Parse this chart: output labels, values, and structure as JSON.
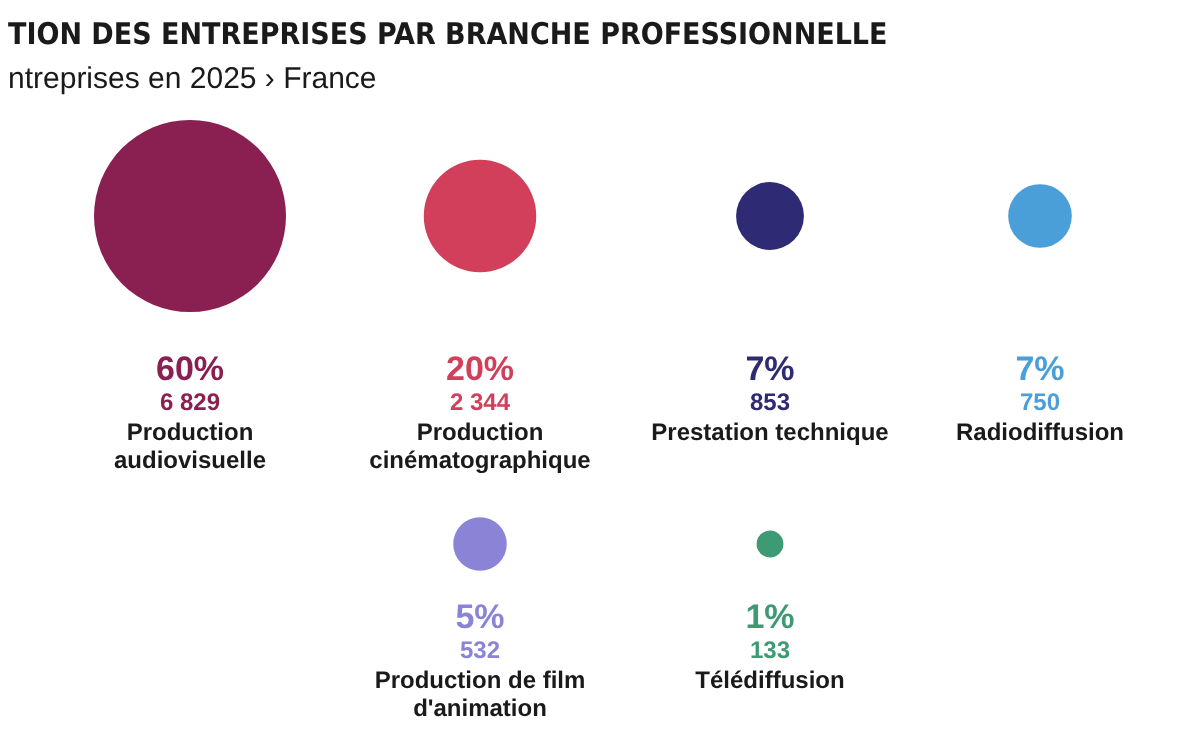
{
  "chart_data": {
    "type": "other",
    "title": "TION DES ENTREPRISES PAR BRANCHE PROFESSIONNELLE",
    "subtitle": "ntreprises en 2025 › France",
    "categories": [
      "Production audiovisuelle",
      "Production cinématographique",
      "Prestation technique",
      "Radiodiffusion",
      "Production de film d'animation",
      "Télédiffusion"
    ],
    "values": [
      6829,
      2344,
      853,
      750,
      532,
      133
    ],
    "value_labels": [
      "6 829",
      "2 344",
      "853",
      "750",
      "532",
      "133"
    ],
    "annotations": [
      {
        "text": "60%",
        "x": "Production audiovisuelle"
      },
      {
        "text": "20%",
        "x": "Production cinématographique"
      },
      {
        "text": "7%",
        "x": "Prestation technique"
      },
      {
        "text": "7%",
        "x": "Radiodiffusion"
      },
      {
        "text": "5%",
        "x": "Production de film d'animation"
      },
      {
        "text": "1%",
        "x": "Télédiffusion"
      }
    ],
    "colors": [
      "#8a1f52",
      "#d13f5a",
      "#2e2a74",
      "#4a9fd8",
      "#8b84d6",
      "#3e9a72"
    ]
  }
}
